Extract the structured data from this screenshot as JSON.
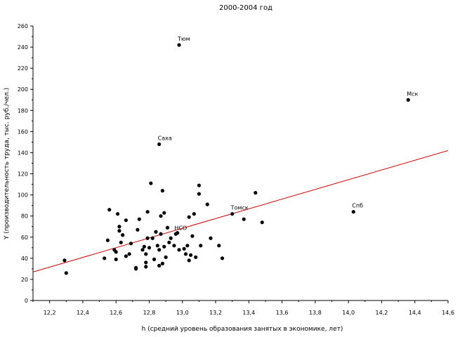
{
  "chart_data": {
    "type": "scatter",
    "title": "2000-2004 год",
    "xlabel": "h (средний уровень образования занятых в экономике, лет)",
    "ylabel": "Y (производительность труда, тыс. руб./чел.)",
    "xlim": [
      12.1,
      14.6
    ],
    "ylim": [
      0,
      260
    ],
    "xticks": [
      "12,2",
      "12,4",
      "12,6",
      "12,8",
      "13,0",
      "13,2",
      "13,4",
      "13,6",
      "13,8",
      "14,0",
      "14,2",
      "14,4",
      "14,6"
    ],
    "yticks": [
      "0",
      "20",
      "40",
      "60",
      "80",
      "100",
      "120",
      "140",
      "160",
      "180",
      "200",
      "220",
      "240",
      "260"
    ],
    "grid": false,
    "marker_color": "#000000",
    "trend_color": "#cc0000",
    "trend_line": {
      "x": [
        12.1,
        14.6
      ],
      "y": [
        27,
        142
      ]
    },
    "points": [
      {
        "x": 12.29,
        "y": 38
      },
      {
        "x": 12.3,
        "y": 26
      },
      {
        "x": 12.53,
        "y": 40
      },
      {
        "x": 12.55,
        "y": 57
      },
      {
        "x": 12.56,
        "y": 86
      },
      {
        "x": 12.59,
        "y": 48
      },
      {
        "x": 12.6,
        "y": 46
      },
      {
        "x": 12.6,
        "y": 39
      },
      {
        "x": 12.61,
        "y": 82
      },
      {
        "x": 12.62,
        "y": 70
      },
      {
        "x": 12.62,
        "y": 66
      },
      {
        "x": 12.63,
        "y": 55
      },
      {
        "x": 12.64,
        "y": 62
      },
      {
        "x": 12.66,
        "y": 76
      },
      {
        "x": 12.66,
        "y": 42
      },
      {
        "x": 12.68,
        "y": 44
      },
      {
        "x": 12.69,
        "y": 54
      },
      {
        "x": 12.72,
        "y": 31
      },
      {
        "x": 12.72,
        "y": 30
      },
      {
        "x": 12.73,
        "y": 67
      },
      {
        "x": 12.74,
        "y": 77
      },
      {
        "x": 12.76,
        "y": 48
      },
      {
        "x": 12.77,
        "y": 51
      },
      {
        "x": 12.78,
        "y": 44
      },
      {
        "x": 12.78,
        "y": 36
      },
      {
        "x": 12.78,
        "y": 32
      },
      {
        "x": 12.79,
        "y": 84
      },
      {
        "x": 12.79,
        "y": 59
      },
      {
        "x": 12.8,
        "y": 50
      },
      {
        "x": 12.81,
        "y": 111
      },
      {
        "x": 12.82,
        "y": 59
      },
      {
        "x": 12.83,
        "y": 39
      },
      {
        "x": 12.84,
        "y": 65
      },
      {
        "x": 12.85,
        "y": 52
      },
      {
        "x": 12.86,
        "y": 48
      },
      {
        "x": 12.86,
        "y": 33
      },
      {
        "x": 12.87,
        "y": 63
      },
      {
        "x": 12.87,
        "y": 80
      },
      {
        "x": 12.88,
        "y": 35
      },
      {
        "x": 12.88,
        "y": 104
      },
      {
        "x": 12.89,
        "y": 83
      },
      {
        "x": 12.89,
        "y": 51
      },
      {
        "x": 12.9,
        "y": 41
      },
      {
        "x": 12.91,
        "y": 69
      },
      {
        "x": 12.92,
        "y": 55
      },
      {
        "x": 12.93,
        "y": 59
      },
      {
        "x": 12.95,
        "y": 52
      },
      {
        "x": 12.97,
        "y": 64
      },
      {
        "x": 12.98,
        "y": 48
      },
      {
        "x": 13.01,
        "y": 49
      },
      {
        "x": 13.02,
        "y": 44
      },
      {
        "x": 13.03,
        "y": 52
      },
      {
        "x": 13.04,
        "y": 79
      },
      {
        "x": 13.04,
        "y": 38
      },
      {
        "x": 13.05,
        "y": 43
      },
      {
        "x": 13.06,
        "y": 61
      },
      {
        "x": 13.07,
        "y": 82
      },
      {
        "x": 13.08,
        "y": 41
      },
      {
        "x": 13.1,
        "y": 109
      },
      {
        "x": 13.1,
        "y": 101
      },
      {
        "x": 13.11,
        "y": 52
      },
      {
        "x": 13.15,
        "y": 91
      },
      {
        "x": 13.17,
        "y": 59
      },
      {
        "x": 13.22,
        "y": 52
      },
      {
        "x": 13.24,
        "y": 40
      },
      {
        "x": 13.37,
        "y": 77
      },
      {
        "x": 13.44,
        "y": 102
      },
      {
        "x": 13.48,
        "y": 74
      }
    ],
    "labeled_points": [
      {
        "label": "Тюм",
        "x": 12.98,
        "y": 242
      },
      {
        "label": "Саха",
        "x": 12.86,
        "y": 148
      },
      {
        "label": "НСО",
        "x": 12.96,
        "y": 63
      },
      {
        "label": "Томск",
        "x": 13.3,
        "y": 82
      },
      {
        "label": "Спб",
        "x": 14.03,
        "y": 84
      },
      {
        "label": "Мск",
        "x": 14.36,
        "y": 190
      }
    ]
  }
}
